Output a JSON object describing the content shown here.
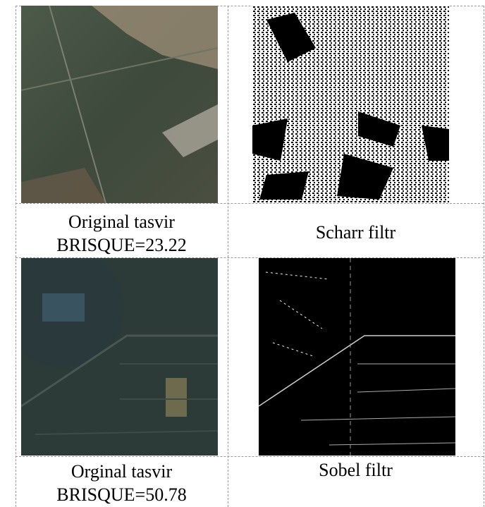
{
  "table": {
    "rows": [
      [
        {
          "lines": [
            "Original tasvir",
            "BRISQUE=23.22"
          ]
        },
        {
          "lines": [
            "Scharr filtr"
          ]
        }
      ],
      [
        {
          "lines": [
            "Orginal tasvir",
            "BRISQUE=50.78"
          ]
        },
        {
          "lines": [
            "Sobel filtr"
          ]
        }
      ]
    ]
  }
}
